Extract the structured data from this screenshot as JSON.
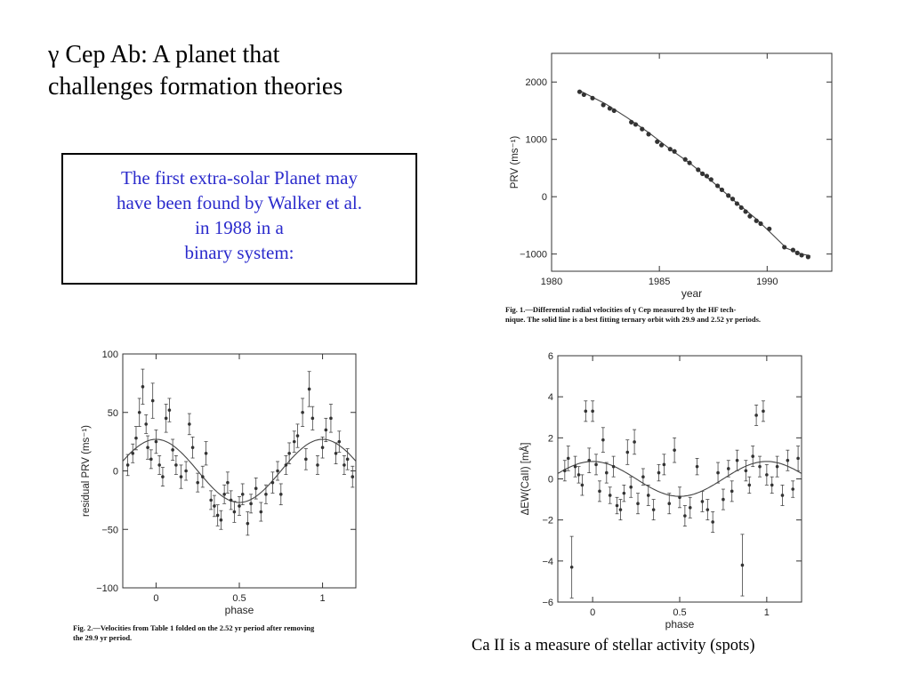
{
  "slide": {
    "title_line1": "γ Cep Ab: A planet that",
    "title_line2": "challenges formation theories",
    "box_lines": [
      "The first extra-solar Planet may",
      "have been found by Walker et al.",
      "in 1988  in a",
      "binary system:"
    ],
    "bottom_caption": "Ca II is a measure of stellar activity (spots)"
  },
  "fig1_caption": {
    "line1": "Fig. 1.—Differential radial velocities of γ Cep measured by the HF tech-",
    "line2": "nique. The solid line is a best fitting ternary orbit with 29.9 and 2.52 yr periods."
  },
  "fig2_caption": {
    "line1": "Fig. 2.—Velocities from Table 1 folded on the 2.52 yr period after removing",
    "line2": "the 29.9 yr period."
  },
  "chart_data": [
    {
      "id": "fig1",
      "type": "scatter",
      "xlabel": "year",
      "ylabel": "PRV (ms⁻¹)",
      "xlim": [
        1980,
        1993
      ],
      "ylim": [
        -1300,
        2500
      ],
      "xticks": [
        1980,
        1985,
        1990
      ],
      "yticks": [
        -1000,
        0,
        1000,
        2000
      ],
      "ytick_labels": [
        "−1000",
        "0",
        "1000",
        "2000"
      ],
      "points": [
        [
          1981.3,
          1830
        ],
        [
          1981.5,
          1780
        ],
        [
          1981.9,
          1720
        ],
        [
          1982.4,
          1600
        ],
        [
          1982.7,
          1540
        ],
        [
          1982.9,
          1500
        ],
        [
          1983.7,
          1300
        ],
        [
          1983.9,
          1260
        ],
        [
          1984.2,
          1180
        ],
        [
          1984.5,
          1090
        ],
        [
          1984.9,
          960
        ],
        [
          1985.1,
          900
        ],
        [
          1985.5,
          830
        ],
        [
          1985.7,
          790
        ],
        [
          1986.2,
          650
        ],
        [
          1986.4,
          590
        ],
        [
          1986.8,
          470
        ],
        [
          1987.0,
          400
        ],
        [
          1987.2,
          360
        ],
        [
          1987.4,
          300
        ],
        [
          1987.7,
          190
        ],
        [
          1987.9,
          120
        ],
        [
          1988.2,
          20
        ],
        [
          1988.4,
          -40
        ],
        [
          1988.6,
          -120
        ],
        [
          1988.8,
          -190
        ],
        [
          1989.0,
          -260
        ],
        [
          1989.2,
          -340
        ],
        [
          1989.5,
          -420
        ],
        [
          1989.7,
          -470
        ],
        [
          1990.1,
          -560
        ],
        [
          1990.8,
          -880
        ],
        [
          1991.2,
          -930
        ],
        [
          1991.4,
          -980
        ],
        [
          1991.6,
          -1020
        ],
        [
          1991.9,
          -1050
        ]
      ],
      "fit": [
        [
          1981.3,
          1850
        ],
        [
          1982.5,
          1620
        ],
        [
          1983.5,
          1380
        ],
        [
          1984.5,
          1120
        ],
        [
          1985.5,
          830
        ],
        [
          1986.5,
          560
        ],
        [
          1987.5,
          250
        ],
        [
          1988.5,
          -80
        ],
        [
          1989.5,
          -390
        ],
        [
          1990.3,
          -680
        ],
        [
          1990.9,
          -900
        ],
        [
          1991.6,
          -1000
        ],
        [
          1992.0,
          -1030
        ]
      ]
    },
    {
      "id": "fig2",
      "type": "scatter",
      "xlabel": "phase",
      "ylabel": "residual PRV (ms⁻¹)",
      "xlim": [
        -0.2,
        1.2
      ],
      "ylim": [
        -100,
        100
      ],
      "xticks": [
        0,
        0.5,
        1
      ],
      "xtick_labels": [
        "0",
        "0.5",
        "1"
      ],
      "yticks": [
        -100,
        -50,
        0,
        50,
        100
      ],
      "ytick_labels": [
        "−100",
        "−50",
        "0",
        "50",
        "100"
      ],
      "fit": {
        "amplitude": 27,
        "phase_of_max": 0.0
      },
      "points": [
        [
          -0.17,
          5,
          9
        ],
        [
          -0.14,
          15,
          8
        ],
        [
          -0.12,
          28,
          10
        ],
        [
          -0.1,
          50,
          12
        ],
        [
          -0.08,
          72,
          15
        ],
        [
          -0.06,
          40,
          8
        ],
        [
          -0.05,
          20,
          10
        ],
        [
          -0.03,
          10,
          8
        ],
        [
          -0.02,
          60,
          15
        ],
        [
          0.0,
          25,
          10
        ],
        [
          0.02,
          5,
          8
        ],
        [
          0.04,
          -5,
          8
        ],
        [
          0.06,
          45,
          12
        ],
        [
          0.08,
          52,
          10
        ],
        [
          0.1,
          18,
          9
        ],
        [
          0.12,
          5,
          8
        ],
        [
          0.15,
          -5,
          10
        ],
        [
          0.18,
          0,
          8
        ],
        [
          0.2,
          40,
          9
        ],
        [
          0.22,
          20,
          9
        ],
        [
          0.25,
          -10,
          8
        ],
        [
          0.28,
          -5,
          9
        ],
        [
          0.3,
          15,
          10
        ],
        [
          0.33,
          -25,
          8
        ],
        [
          0.35,
          -30,
          9
        ],
        [
          0.37,
          -38,
          9
        ],
        [
          0.39,
          -42,
          8
        ],
        [
          0.41,
          -20,
          8
        ],
        [
          0.43,
          -10,
          9
        ],
        [
          0.45,
          -25,
          8
        ],
        [
          0.47,
          -35,
          9
        ],
        [
          0.5,
          -30,
          8
        ],
        [
          0.52,
          -20,
          9
        ],
        [
          0.55,
          -45,
          10
        ],
        [
          0.57,
          -28,
          8
        ],
        [
          0.6,
          -15,
          9
        ],
        [
          0.63,
          -35,
          8
        ],
        [
          0.66,
          -20,
          8
        ],
        [
          0.7,
          -10,
          9
        ],
        [
          0.73,
          0,
          8
        ],
        [
          0.75,
          -20,
          9
        ],
        [
          0.78,
          5,
          8
        ],
        [
          0.8,
          15,
          9
        ],
        [
          0.83,
          25,
          9
        ],
        [
          0.85,
          30,
          10
        ],
        [
          0.88,
          50,
          12
        ],
        [
          0.9,
          10,
          9
        ],
        [
          0.92,
          70,
          15
        ],
        [
          0.94,
          45,
          10
        ],
        [
          0.97,
          5,
          8
        ],
        [
          1.0,
          20,
          9
        ],
        [
          1.02,
          35,
          10
        ],
        [
          1.05,
          45,
          12
        ],
        [
          1.08,
          15,
          9
        ],
        [
          1.1,
          25,
          9
        ],
        [
          1.13,
          5,
          8
        ],
        [
          1.15,
          10,
          9
        ],
        [
          1.18,
          -5,
          9
        ]
      ]
    },
    {
      "id": "fig3",
      "type": "scatter",
      "xlabel": "phase",
      "ylabel": "ΔEW(CaII)  [mÅ]",
      "xlim": [
        -0.2,
        1.2
      ],
      "ylim": [
        -6,
        6
      ],
      "xticks": [
        0,
        0.5,
        1
      ],
      "xtick_labels": [
        "0",
        "0.5",
        "1"
      ],
      "yticks": [
        -6,
        -4,
        -2,
        0,
        2,
        4,
        6
      ],
      "ytick_labels": [
        "−6",
        "−4",
        "−2",
        "0",
        "2",
        "4",
        "6"
      ],
      "fit": {
        "amplitude": 0.85,
        "phase_of_max": 0.0
      },
      "points": [
        [
          -0.16,
          0.4,
          0.5
        ],
        [
          -0.14,
          1.0,
          0.6
        ],
        [
          -0.12,
          -4.3,
          1.5
        ],
        [
          -0.1,
          0.6,
          0.5
        ],
        [
          -0.08,
          0.2,
          0.4
        ],
        [
          -0.06,
          -0.3,
          0.5
        ],
        [
          -0.04,
          3.3,
          0.5
        ],
        [
          -0.02,
          0.9,
          0.6
        ],
        [
          0.0,
          3.3,
          0.5
        ],
        [
          0.02,
          0.7,
          0.5
        ],
        [
          0.04,
          -0.6,
          0.5
        ],
        [
          0.06,
          1.9,
          0.6
        ],
        [
          0.08,
          0.3,
          0.5
        ],
        [
          0.1,
          -0.8,
          0.4
        ],
        [
          0.12,
          0.6,
          0.5
        ],
        [
          0.14,
          -1.3,
          0.4
        ],
        [
          0.16,
          -1.5,
          0.5
        ],
        [
          0.18,
          -0.7,
          0.4
        ],
        [
          0.2,
          1.3,
          0.6
        ],
        [
          0.22,
          -0.4,
          0.5
        ],
        [
          0.24,
          1.8,
          0.6
        ],
        [
          0.26,
          -1.2,
          0.5
        ],
        [
          0.29,
          0.1,
          0.4
        ],
        [
          0.32,
          -0.8,
          0.5
        ],
        [
          0.35,
          -1.5,
          0.5
        ],
        [
          0.38,
          0.3,
          0.4
        ],
        [
          0.41,
          0.7,
          0.5
        ],
        [
          0.44,
          -1.2,
          0.5
        ],
        [
          0.47,
          1.4,
          0.6
        ],
        [
          0.5,
          -0.9,
          0.5
        ],
        [
          0.53,
          -1.8,
          0.5
        ],
        [
          0.56,
          -1.4,
          0.5
        ],
        [
          0.6,
          0.6,
          0.4
        ],
        [
          0.63,
          -1.1,
          0.5
        ],
        [
          0.66,
          -1.5,
          0.5
        ],
        [
          0.69,
          -2.1,
          0.5
        ],
        [
          0.72,
          0.3,
          0.5
        ],
        [
          0.75,
          -1.0,
          0.5
        ],
        [
          0.78,
          0.5,
          0.4
        ],
        [
          0.8,
          -0.6,
          0.5
        ],
        [
          0.83,
          0.9,
          0.5
        ],
        [
          0.86,
          -4.2,
          1.5
        ],
        [
          0.88,
          0.4,
          0.5
        ],
        [
          0.9,
          -0.3,
          0.4
        ],
        [
          0.92,
          1.1,
          0.5
        ],
        [
          0.94,
          3.1,
          0.5
        ],
        [
          0.96,
          0.6,
          0.5
        ],
        [
          0.98,
          3.3,
          0.5
        ],
        [
          1.0,
          0.2,
          0.5
        ],
        [
          1.03,
          -0.3,
          0.4
        ],
        [
          1.06,
          0.6,
          0.5
        ],
        [
          1.09,
          -0.8,
          0.5
        ],
        [
          1.12,
          0.9,
          0.5
        ],
        [
          1.15,
          -0.5,
          0.4
        ],
        [
          1.18,
          1.0,
          0.6
        ]
      ]
    }
  ]
}
